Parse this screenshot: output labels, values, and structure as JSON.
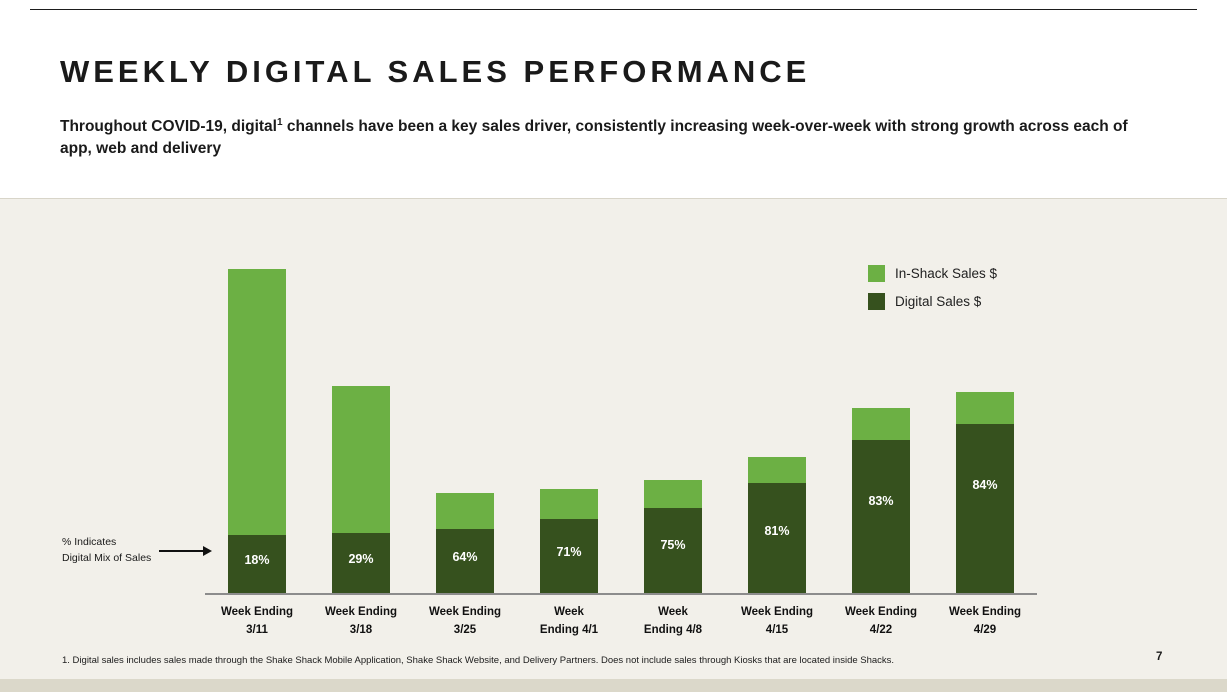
{
  "slide": {
    "title": "WEEKLY DIGITAL SALES PERFORMANCE",
    "subtitle": {
      "before_sup": "Throughout COVID-19, digital",
      "sup": "1",
      "after_sup": " channels have been a key sales driver, consistently increasing week-over-week with strong growth across each of app, web and delivery"
    },
    "footnote": "1. Digital sales includes sales made through the Shake Shack Mobile Application, Shake Shack Website, and Delivery Partners. Does not include sales through Kiosks that are located inside Shacks.",
    "page_number": "7"
  },
  "colors": {
    "in_shack_green": "#6cb044",
    "digital_dark_green": "#36511e",
    "chart_background": "#f2f0ea"
  },
  "legend": {
    "items": [
      {
        "label": "In-Shack Sales $",
        "color": "#6cb044"
      },
      {
        "label": "Digital Sales $",
        "color": "#36511e"
      }
    ]
  },
  "annotation": {
    "text": "% Indicates\nDigital Mix of Sales"
  },
  "chart_data": {
    "type": "bar",
    "stacked": true,
    "title": "",
    "xlabel": "",
    "ylabel": "",
    "axis_note": "no y-axis shown; bar heights are relative total weekly sales (max week = 100)",
    "legend_position": "top-right",
    "categories": [
      "Week Ending\n3/11",
      "Week Ending\n3/18",
      "Week Ending\n3/25",
      "Week\nEnding 4/1",
      "Week\nEnding 4/8",
      "Week Ending\n4/15",
      "Week Ending\n4/22",
      "Week Ending\n4/29"
    ],
    "digital_mix_pct": [
      18,
      29,
      64,
      71,
      75,
      81,
      83,
      84
    ],
    "bar_labels": [
      "18%",
      "29%",
      "64%",
      "71%",
      "75%",
      "81%",
      "83%",
      "84%"
    ],
    "relative_total_sales": [
      100,
      64,
      31,
      32,
      35,
      42,
      57,
      62
    ],
    "series": [
      {
        "name": "Digital Sales $",
        "color": "#36511e",
        "values": [
          18,
          18.6,
          19.8,
          22.7,
          26.3,
          34.0,
          47.3,
          52.1
        ]
      },
      {
        "name": "In-Shack Sales $",
        "color": "#6cb044",
        "values": [
          82,
          45.4,
          11.2,
          9.3,
          8.8,
          8.0,
          9.7,
          9.9
        ]
      }
    ]
  }
}
